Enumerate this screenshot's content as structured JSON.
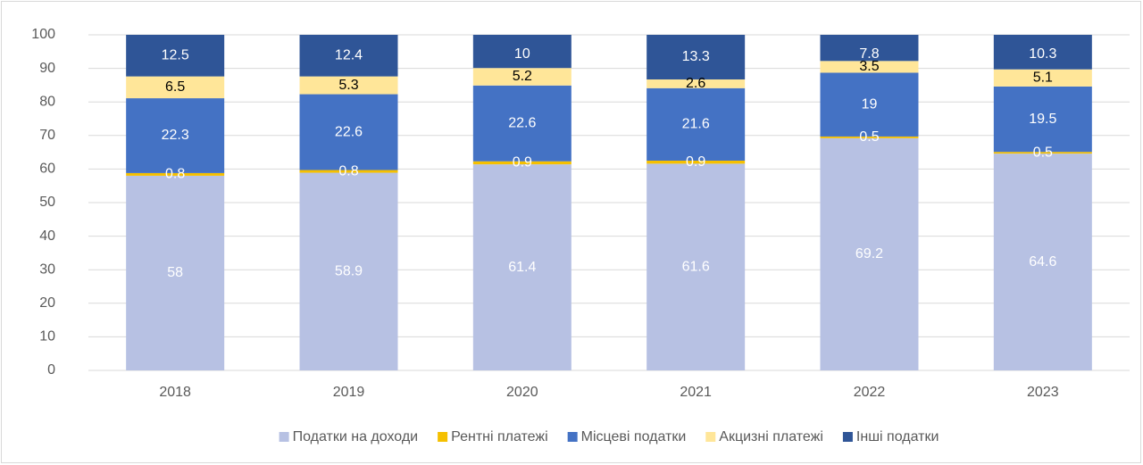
{
  "chart_data": {
    "type": "stacked_bar",
    "categories": [
      "2018",
      "2019",
      "2020",
      "2021",
      "2022",
      "2023"
    ],
    "series": [
      {
        "name": "Податки на доходи",
        "color": "#b7c1e3",
        "values": [
          58,
          58.9,
          61.4,
          61.6,
          69.2,
          64.6
        ]
      },
      {
        "name": "Рентні платежі",
        "color": "#f5c000",
        "values": [
          0.8,
          0.8,
          0.9,
          0.9,
          0.5,
          0.5
        ]
      },
      {
        "name": "Місцеві податки",
        "color": "#4472c4",
        "values": [
          22.3,
          22.6,
          22.6,
          21.6,
          19,
          19.5
        ]
      },
      {
        "name": "Акцизні платежі",
        "color": "#ffe699",
        "values": [
          6.5,
          5.3,
          5.2,
          2.6,
          3.5,
          5.1
        ]
      },
      {
        "name": "Інші податки",
        "color": "#2f5597",
        "values": [
          12.5,
          12.4,
          10,
          13.3,
          7.8,
          10.3
        ]
      }
    ],
    "ylim": [
      0,
      100
    ],
    "yticks": [
      0,
      10,
      20,
      30,
      40,
      50,
      60,
      70,
      80,
      90,
      100
    ],
    "grid": true,
    "legend": "bottom"
  }
}
